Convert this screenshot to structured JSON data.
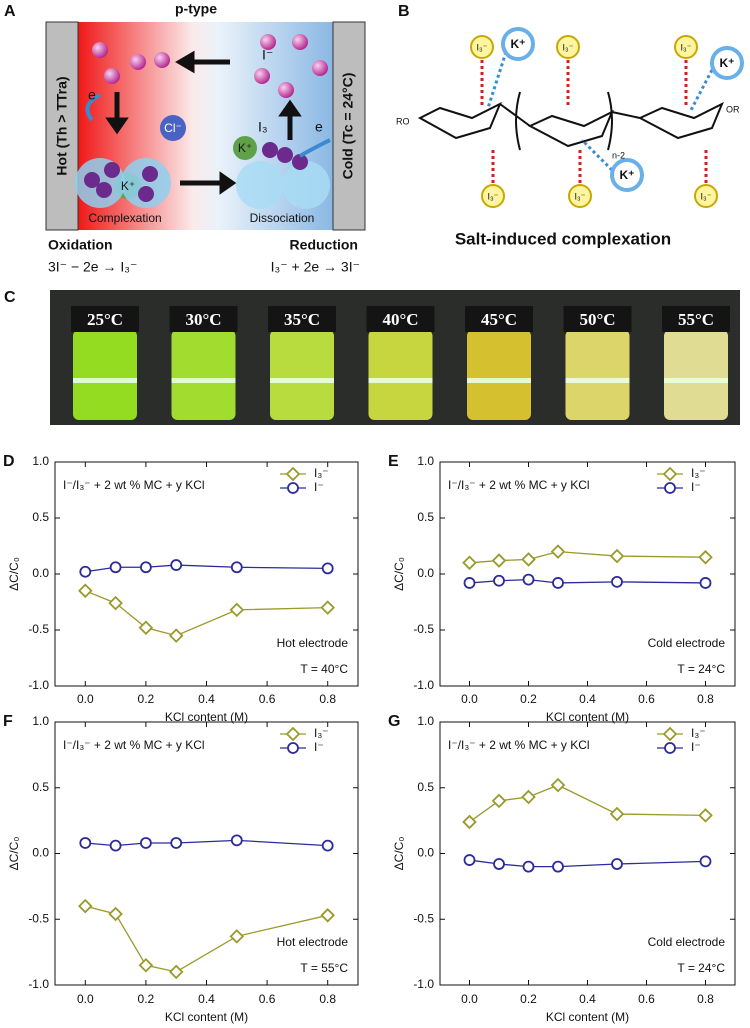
{
  "panel_a": {
    "label": "A",
    "title": "p-type",
    "hot": "Hot (Th > TTra)",
    "cold": "Cold (Tc = 24°C)",
    "electron_left": "e",
    "electron_right": "e",
    "chloride": "Cl⁻",
    "potassium_left": "K⁺",
    "potassium_right": "K⁺",
    "iodide": "I⁻",
    "triiodide": "I₃",
    "complexation": "Complexation",
    "dissociation": "Dissociation",
    "oxidation": "Oxidation",
    "reduction": "Reduction",
    "oxidation_equation": "3I⁻ − 2e → I₃⁻",
    "reduction_equation": "I₃⁻ + 2e → 3I⁻"
  },
  "panel_b": {
    "label": "B",
    "caption": "Salt-induced complexation",
    "triiodide_labels": [
      "I₃⁻",
      "I₃⁻",
      "I₃⁻",
      "I₃⁻",
      "I₃⁻",
      "I₃⁻"
    ],
    "potassium_labels": [
      "K⁺",
      "K⁺",
      "K⁺"
    ],
    "end_left": "RO",
    "end_right": "OR",
    "repeat": "n-2"
  },
  "panel_c": {
    "label": "C",
    "temperatures": [
      "25°C",
      "30°C",
      "35°C",
      "40°C",
      "45°C",
      "50°C",
      "55°C"
    ]
  },
  "chart_data": [
    {
      "type": "line",
      "panel_label": "D",
      "title": "I⁻/I₃⁻ + 2 wt % MC + y KCl",
      "x_label": "KCl content (M)",
      "y_label": "ΔC/C₀",
      "annotations": [
        "Hot electrode",
        "T = 40°C"
      ],
      "x": [
        0,
        0.1,
        0.2,
        0.3,
        0.5,
        0.8
      ],
      "series": [
        {
          "name": "I₃⁻",
          "color": "#9a9a2a",
          "marker": "diamond",
          "values": [
            -0.15,
            -0.26,
            -0.48,
            -0.55,
            -0.32,
            -0.3
          ]
        },
        {
          "name": "I⁻",
          "color": "#2b2b9b",
          "marker": "circle",
          "values": [
            0.02,
            0.06,
            0.06,
            0.08,
            0.06,
            0.05
          ]
        }
      ],
      "xlim": [
        -0.1,
        0.9
      ],
      "ylim": [
        -1,
        1
      ],
      "xticks": [
        {
          "value": 0,
          "label": "0.0"
        },
        {
          "value": 0.2,
          "label": "0.2"
        },
        {
          "value": 0.4,
          "label": "0.4"
        },
        {
          "value": 0.6,
          "label": "0.6"
        },
        {
          "value": 0.8,
          "label": "0.8"
        }
      ],
      "yticks": [
        {
          "value": -1,
          "label": "-1.0"
        },
        {
          "value": -0.5,
          "label": "-0.5"
        },
        {
          "value": 0,
          "label": "0.0"
        },
        {
          "value": 0.5,
          "label": "0.5"
        },
        {
          "value": 1,
          "label": "1.0"
        }
      ],
      "legend": "upper right"
    },
    {
      "type": "line",
      "panel_label": "E",
      "title": "I⁻/I₃⁻ + 2 wt % MC + y KCl",
      "x_label": "KCl content (M)",
      "y_label": "ΔC/C₀",
      "annotations": [
        "Cold electrode",
        "T = 24°C"
      ],
      "x": [
        0,
        0.1,
        0.2,
        0.3,
        0.5,
        0.8
      ],
      "series": [
        {
          "name": "I₃⁻",
          "color": "#9a9a2a",
          "marker": "diamond",
          "values": [
            0.1,
            0.12,
            0.13,
            0.2,
            0.16,
            0.15
          ]
        },
        {
          "name": "I⁻",
          "color": "#2b2b9b",
          "marker": "circle",
          "values": [
            -0.08,
            -0.06,
            -0.05,
            -0.08,
            -0.07,
            -0.08
          ]
        }
      ],
      "xlim": [
        -0.1,
        0.9
      ],
      "ylim": [
        -1,
        1
      ],
      "xticks": [
        {
          "value": 0,
          "label": "0.0"
        },
        {
          "value": 0.2,
          "label": "0.2"
        },
        {
          "value": 0.4,
          "label": "0.4"
        },
        {
          "value": 0.6,
          "label": "0.6"
        },
        {
          "value": 0.8,
          "label": "0.8"
        }
      ],
      "yticks": [
        {
          "value": -1,
          "label": "-1.0"
        },
        {
          "value": -0.5,
          "label": "-0.5"
        },
        {
          "value": 0,
          "label": "0.0"
        },
        {
          "value": 0.5,
          "label": "0.5"
        },
        {
          "value": 1,
          "label": "1.0"
        }
      ],
      "legend": "upper right"
    },
    {
      "type": "line",
      "panel_label": "F",
      "title": "I⁻/I₃⁻ + 2 wt % MC + y KCl",
      "x_label": "KCl content (M)",
      "y_label": "ΔC/C₀",
      "annotations": [
        "Hot electrode",
        "T = 55°C"
      ],
      "x": [
        0,
        0.1,
        0.2,
        0.3,
        0.5,
        0.8
      ],
      "series": [
        {
          "name": "I₃⁻",
          "color": "#9a9a2a",
          "marker": "diamond",
          "values": [
            -0.4,
            -0.46,
            -0.85,
            -0.9,
            -0.63,
            -0.47
          ]
        },
        {
          "name": "I⁻",
          "color": "#2b2b9b",
          "marker": "circle",
          "values": [
            0.08,
            0.06,
            0.08,
            0.08,
            0.1,
            0.06
          ]
        }
      ],
      "xlim": [
        -0.1,
        0.9
      ],
      "ylim": [
        -1,
        1
      ],
      "xticks": [
        {
          "value": 0,
          "label": "0.0"
        },
        {
          "value": 0.2,
          "label": "0.2"
        },
        {
          "value": 0.4,
          "label": "0.4"
        },
        {
          "value": 0.6,
          "label": "0.6"
        },
        {
          "value": 0.8,
          "label": "0.8"
        }
      ],
      "yticks": [
        {
          "value": -1,
          "label": "-1.0"
        },
        {
          "value": -0.5,
          "label": "-0.5"
        },
        {
          "value": 0,
          "label": "0.0"
        },
        {
          "value": 0.5,
          "label": "0.5"
        },
        {
          "value": 1,
          "label": "1.0"
        }
      ],
      "legend": "upper right"
    },
    {
      "type": "line",
      "panel_label": "G",
      "title": "I⁻/I₃⁻ + 2 wt % MC + y KCl",
      "x_label": "KCl content (M)",
      "y_label": "ΔC/C₀",
      "annotations": [
        "Cold electrode",
        "T = 24°C"
      ],
      "x": [
        0,
        0.1,
        0.2,
        0.3,
        0.5,
        0.8
      ],
      "series": [
        {
          "name": "I₃⁻",
          "color": "#9a9a2a",
          "marker": "diamond",
          "values": [
            0.24,
            0.4,
            0.43,
            0.52,
            0.3,
            0.29
          ]
        },
        {
          "name": "I⁻",
          "color": "#2b2b9b",
          "marker": "circle",
          "values": [
            -0.05,
            -0.08,
            -0.1,
            -0.1,
            -0.08,
            -0.06
          ]
        }
      ],
      "xlim": [
        -0.1,
        0.9
      ],
      "ylim": [
        -1,
        1
      ],
      "xticks": [
        {
          "value": 0,
          "label": "0.0"
        },
        {
          "value": 0.2,
          "label": "0.2"
        },
        {
          "value": 0.4,
          "label": "0.4"
        },
        {
          "value": 0.6,
          "label": "0.6"
        },
        {
          "value": 0.8,
          "label": "0.8"
        }
      ],
      "yticks": [
        {
          "value": -1,
          "label": "-1.0"
        },
        {
          "value": -0.5,
          "label": "-0.5"
        },
        {
          "value": 0,
          "label": "0.0"
        },
        {
          "value": 0.5,
          "label": "0.5"
        },
        {
          "value": 1,
          "label": "1.0"
        }
      ],
      "legend": "upper right"
    }
  ]
}
